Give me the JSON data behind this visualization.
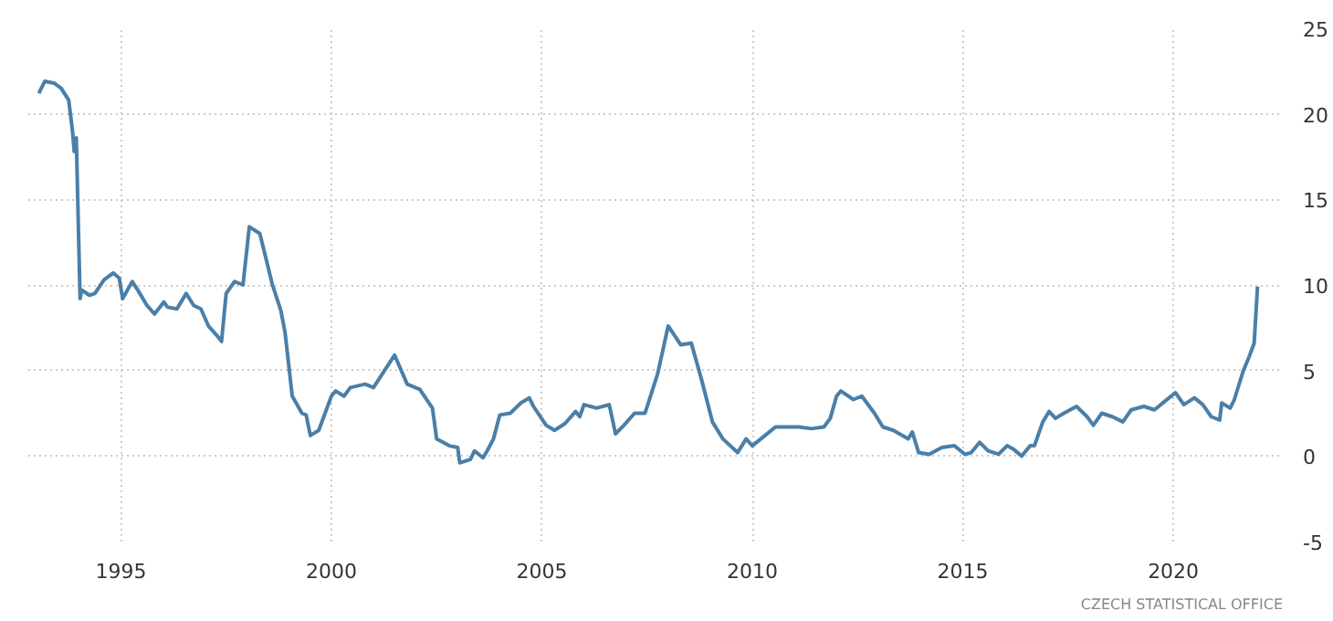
{
  "chart_data": {
    "type": "line",
    "annotations": [
      "CZECH STATISTICAL OFFICE"
    ],
    "x": [
      1993.05,
      1993.19,
      1993.41,
      1993.58,
      1993.76,
      1993.85,
      1993.89,
      1993.94,
      1994.03,
      1994.07,
      1994.25,
      1994.38,
      1994.6,
      1994.82,
      1994.96,
      1995.04,
      1995.27,
      1995.4,
      1995.62,
      1995.8,
      1996.02,
      1996.11,
      1996.33,
      1996.55,
      1996.73,
      1996.9,
      1997.08,
      1997.26,
      1997.39,
      1997.5,
      1997.7,
      1997.9,
      1998.05,
      1998.3,
      1998.6,
      1998.8,
      1998.9,
      1999.07,
      1999.3,
      1999.4,
      1999.5,
      1999.7,
      2000.0,
      2000.1,
      2000.3,
      2000.45,
      2000.8,
      2001.0,
      2001.5,
      2001.8,
      2002.1,
      2002.4,
      2002.5,
      2002.8,
      2003.0,
      2003.05,
      2003.3,
      2003.4,
      2003.6,
      2003.7,
      2003.85,
      2004.0,
      2004.25,
      2004.5,
      2004.7,
      2004.8,
      2005.1,
      2005.3,
      2005.55,
      2005.8,
      2005.9,
      2006.0,
      2006.3,
      2006.6,
      2006.75,
      2006.95,
      2007.2,
      2007.45,
      2007.75,
      2008.0,
      2008.3,
      2008.55,
      2008.8,
      2009.05,
      2009.3,
      2009.65,
      2009.85,
      2010.0,
      2010.3,
      2010.55,
      2010.8,
      2011.1,
      2011.4,
      2011.7,
      2011.85,
      2012.0,
      2012.1,
      2012.4,
      2012.6,
      2012.9,
      2013.1,
      2013.35,
      2013.7,
      2013.8,
      2013.95,
      2014.2,
      2014.5,
      2014.8,
      2015.05,
      2015.2,
      2015.4,
      2015.6,
      2015.85,
      2016.05,
      2016.2,
      2016.4,
      2016.6,
      2016.7,
      2016.9,
      2017.05,
      2017.2,
      2017.4,
      2017.7,
      2017.95,
      2018.1,
      2018.3,
      2018.55,
      2018.8,
      2019.0,
      2019.3,
      2019.55,
      2019.8,
      2020.05,
      2020.25,
      2020.5,
      2020.7,
      2020.9,
      2021.1,
      2021.15,
      2021.35,
      2021.45,
      2021.65,
      2021.8,
      2021.92,
      2022.0
    ],
    "series": [
      {
        "color": "#4a7fa8",
        "values": [
          21.2,
          21.9,
          21.8,
          21.5,
          20.8,
          19.0,
          17.8,
          18.6,
          9.2,
          9.7,
          9.4,
          9.5,
          10.3,
          10.7,
          10.4,
          9.2,
          10.2,
          9.7,
          8.8,
          8.3,
          9.0,
          8.7,
          8.6,
          9.5,
          8.8,
          8.6,
          7.6,
          7.1,
          6.7,
          9.5,
          10.2,
          10.0,
          13.4,
          13.0,
          10.0,
          8.5,
          7.2,
          3.5,
          2.5,
          2.4,
          1.2,
          1.5,
          3.5,
          3.8,
          3.5,
          4.0,
          4.2,
          4.0,
          5.9,
          4.2,
          3.9,
          2.8,
          1.0,
          0.6,
          0.5,
          -0.4,
          -0.2,
          0.3,
          -0.1,
          0.3,
          1.0,
          2.4,
          2.5,
          3.1,
          3.4,
          2.9,
          1.8,
          1.5,
          1.9,
          2.6,
          2.3,
          3.0,
          2.8,
          3.0,
          1.3,
          1.8,
          2.5,
          2.5,
          4.8,
          7.6,
          6.5,
          6.6,
          4.4,
          2.0,
          1.0,
          0.2,
          1.0,
          0.6,
          1.2,
          1.7,
          1.7,
          1.7,
          1.6,
          1.7,
          2.2,
          3.5,
          3.8,
          3.3,
          3.5,
          2.5,
          1.7,
          1.5,
          1.0,
          1.4,
          0.2,
          0.1,
          0.5,
          0.6,
          0.1,
          0.2,
          0.8,
          0.3,
          0.1,
          0.6,
          0.4,
          0.0,
          0.6,
          0.6,
          2.0,
          2.6,
          2.2,
          2.5,
          2.9,
          2.3,
          1.8,
          2.5,
          2.3,
          2.0,
          2.7,
          2.9,
          2.7,
          3.2,
          3.7,
          3.0,
          3.4,
          3.0,
          2.3,
          2.1,
          3.1,
          2.8,
          3.3,
          4.9,
          5.8,
          6.6,
          9.9
        ]
      }
    ],
    "xlim": [
      1992.8,
      2022.6
    ],
    "xticks": [
      1995,
      2000,
      2005,
      2010,
      2015,
      2020
    ],
    "ylim": [
      -5,
      25
    ],
    "yticks": [
      -5,
      0,
      5,
      10,
      15,
      20,
      25
    ],
    "grid": true,
    "line_style": "solid"
  }
}
